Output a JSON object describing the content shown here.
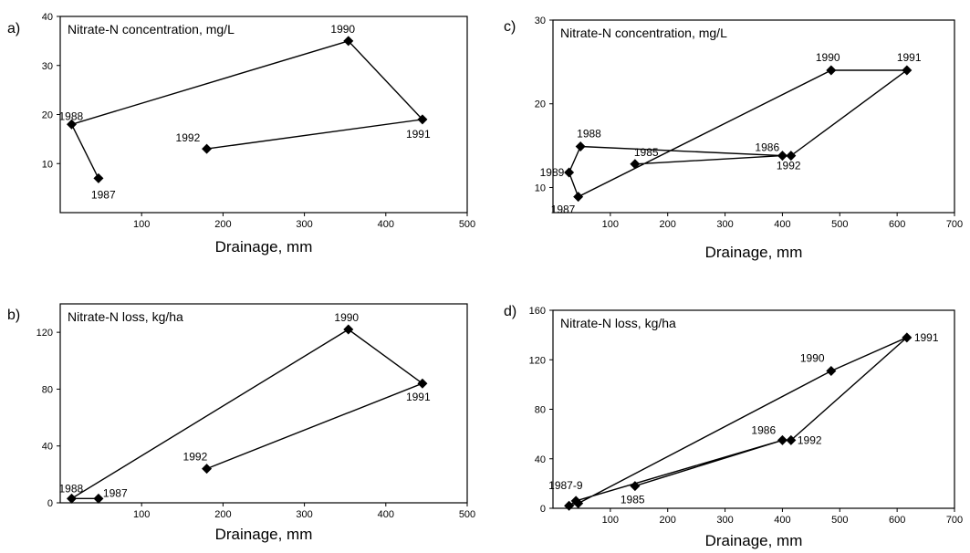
{
  "chart_data": [
    {
      "panel": "a)",
      "type": "line",
      "title": "Nitrate-N concentration, mg/L",
      "xlabel": "Drainage, mm",
      "ylabel": "",
      "xlim": [
        0,
        500
      ],
      "ylim": [
        0,
        40
      ],
      "xticks": [
        100,
        200,
        300,
        400,
        500
      ],
      "yticks": [
        10,
        20,
        30,
        40
      ],
      "grid": false,
      "series": [
        {
          "x": [
            47,
            14,
            354,
            445,
            180
          ],
          "y": [
            7,
            18,
            35,
            19,
            13
          ],
          "labels": [
            "1987",
            "1988",
            "1990",
            "1991",
            "1992"
          ]
        }
      ]
    },
    {
      "panel": "b)",
      "type": "line",
      "title": "Nitrate-N loss, kg/ha",
      "xlabel": "Drainage, mm",
      "ylabel": "",
      "xlim": [
        0,
        500
      ],
      "ylim": [
        0,
        140
      ],
      "xticks": [
        100,
        200,
        300,
        400,
        500
      ],
      "yticks": [
        0,
        40,
        80,
        120
      ],
      "grid": false,
      "series": [
        {
          "x": [
            47,
            14,
            354,
            445,
            180
          ],
          "y": [
            3,
            3,
            122,
            84,
            24
          ],
          "labels": [
            "1987",
            "1988",
            "1990",
            "1991",
            "1992"
          ]
        }
      ]
    },
    {
      "panel": "c)",
      "type": "line",
      "title": "Nitrate-N concentration, mg/L",
      "xlabel": "Drainage, mm",
      "ylabel": "",
      "xlim": [
        0,
        700
      ],
      "ylim": [
        7,
        30
      ],
      "xticks": [
        100,
        200,
        300,
        400,
        500,
        600,
        700
      ],
      "yticks": [
        10,
        20,
        30
      ],
      "grid": false,
      "series": [
        {
          "x": [
            143,
            400,
            48,
            28,
            44,
            485,
            617,
            415
          ],
          "y": [
            12.8,
            13.8,
            14.9,
            11.8,
            8.9,
            24,
            24,
            13.8
          ],
          "labels": [
            "1985",
            "1986",
            "1988",
            "1989",
            "1987",
            "1990",
            "1991",
            "1992"
          ]
        }
      ]
    },
    {
      "panel": "d)",
      "type": "line",
      "title": "Nitrate-N loss, kg/ha",
      "xlabel": "Drainage, mm",
      "ylabel": "",
      "xlim": [
        0,
        700
      ],
      "ylim": [
        0,
        160
      ],
      "xticks": [
        100,
        200,
        300,
        400,
        500,
        600,
        700
      ],
      "yticks": [
        0,
        40,
        80,
        120,
        160
      ],
      "grid": false,
      "series": [
        {
          "x": [
            143,
            400,
            40,
            28,
            44,
            485,
            617,
            415
          ],
          "y": [
            18,
            55,
            6,
            2,
            4,
            111,
            138,
            55
          ],
          "labels": [
            "1985",
            "1986",
            "1987-9",
            "",
            "",
            "1990",
            "1991",
            "1992"
          ]
        }
      ]
    }
  ]
}
